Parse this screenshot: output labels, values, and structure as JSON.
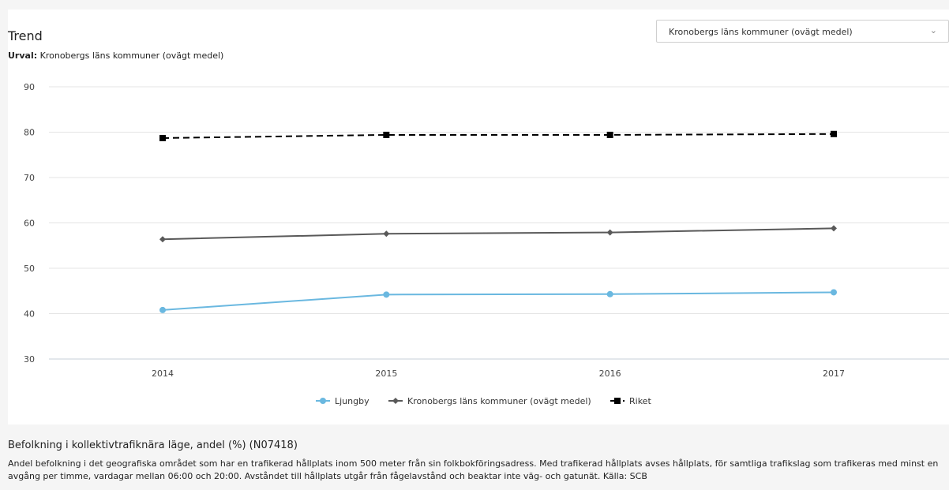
{
  "header": {
    "title": "Trend",
    "urval_label": "Urval:",
    "urval_value": "Kronobergs läns kommuner (ovägt medel)"
  },
  "selector": {
    "value": "Kronobergs läns kommuner (ovägt medel)",
    "icon": "chevron-down-icon"
  },
  "chart_data": {
    "type": "line",
    "x": [
      "2014",
      "2015",
      "2016",
      "2017"
    ],
    "ylim": [
      30,
      90
    ],
    "yticks": [
      30,
      40,
      50,
      60,
      70,
      80,
      90
    ],
    "grid": true,
    "legend": "bottom-center",
    "series": [
      {
        "name": "Ljungby",
        "values": [
          40.8,
          44.2,
          44.3,
          44.7
        ],
        "color": "#6ab8e0",
        "marker": "circle",
        "dash": false
      },
      {
        "name": "Kronobergs läns kommuner (ovägt medel)",
        "values": [
          56.4,
          57.6,
          57.9,
          58.8
        ],
        "color": "#595959",
        "marker": "diamond",
        "dash": false
      },
      {
        "name": "Riket",
        "values": [
          78.7,
          79.4,
          79.4,
          79.6
        ],
        "color": "#000000",
        "marker": "square",
        "dash": true
      }
    ]
  },
  "description": {
    "title": "Befolkning i kollektivtrafiknära läge, andel (%) (N07418)",
    "text": "Andel befolkning i det geografiska området som har en trafikerad hållplats inom 500 meter från sin folkbokföringsadress. Med trafikerad hållplats avses hållplats, för samtliga trafikslag som trafikeras med minst en avgång per timme, vardagar mellan 06:00 och 20:00. Avståndet till hållplats utgår från fågelavstånd och beaktar inte väg- och gatunät. Källa: SCB"
  }
}
